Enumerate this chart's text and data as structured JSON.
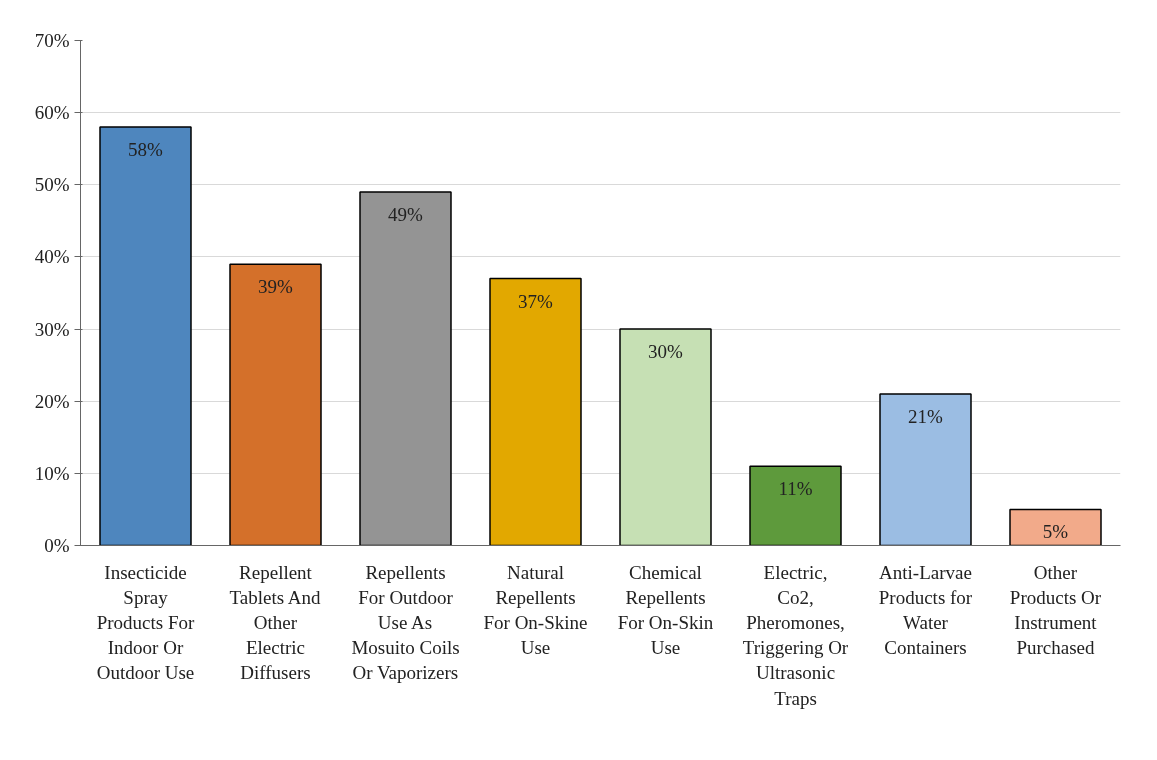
{
  "chart_data": {
    "type": "bar",
    "categories": [
      "Insecticide Spray Products For Indoor Or Outdoor Use",
      "Repellent Tablets And Other Electric Diffusers",
      "Repellents For Outdoor Use As Mosuito Coils Or Vaporizers",
      "Natural Repellents For On-Skine Use",
      "Chemical Repellents For On-Skin Use",
      "Electric, Co2, Pheromones, Triggering Or Ultrasonic Traps",
      "Anti-Larvae Products for Water Containers",
      "Other Products Or Instrument Purchased"
    ],
    "values": [
      58,
      39,
      49,
      37,
      30,
      11,
      21,
      5
    ],
    "colors": [
      "#4e86be",
      "#d4702a",
      "#949494",
      "#e2a800",
      "#c6e0b4",
      "#5e9a3c",
      "#9bbde3",
      "#f2aa8a"
    ],
    "value_labels": [
      "58%",
      "39%",
      "49%",
      "37%",
      "30%",
      "11%",
      "21%",
      "5%"
    ],
    "ylim": [
      0,
      70
    ],
    "yticks": [
      {
        "value": 0,
        "label": "0%"
      },
      {
        "value": 10,
        "label": "10%"
      },
      {
        "value": 20,
        "label": "20%"
      },
      {
        "value": 30,
        "label": "30%"
      },
      {
        "value": 40,
        "label": "40%"
      },
      {
        "value": 50,
        "label": "50%"
      },
      {
        "value": 60,
        "label": "60%"
      },
      {
        "value": 70,
        "label": "70%"
      }
    ],
    "grid": "y"
  }
}
